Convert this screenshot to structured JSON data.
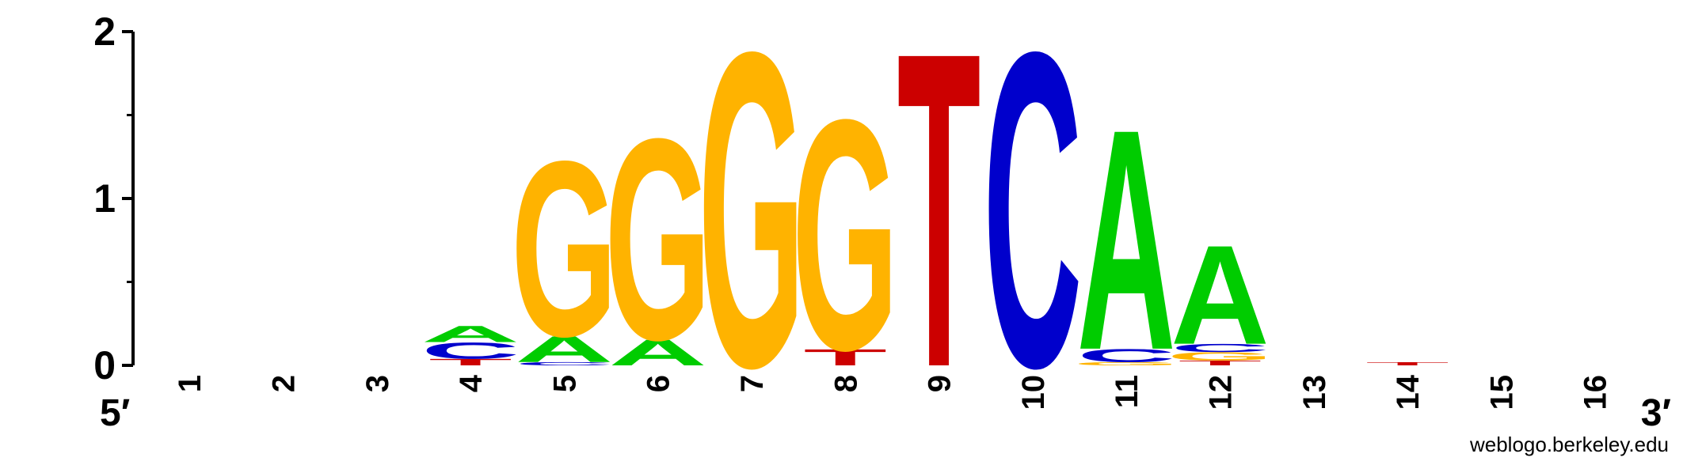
{
  "chart_data": {
    "type": "sequence-logo",
    "ylabel": "",
    "ylim": [
      0,
      2
    ],
    "yticks": [
      "0",
      "1",
      "2"
    ],
    "positions": [
      "1",
      "2",
      "3",
      "4",
      "5",
      "6",
      "7",
      "8",
      "9",
      "10",
      "11",
      "12",
      "13",
      "14",
      "15",
      "16"
    ],
    "end_labels": {
      "left": "5′",
      "right": "3′"
    },
    "colors": {
      "A": "#00cc00",
      "C": "#0000cc",
      "G": "#ffb300",
      "T": "#cc0000"
    },
    "stacks": [
      [],
      [],
      [],
      [
        {
          "base": "T",
          "height": 0.04
        },
        {
          "base": "C",
          "height": 0.1
        },
        {
          "base": "A",
          "height": 0.1
        }
      ],
      [
        {
          "base": "C",
          "height": 0.02
        },
        {
          "base": "A",
          "height": 0.16
        },
        {
          "base": "G",
          "height": 1.08
        }
      ],
      [
        {
          "base": "A",
          "height": 0.16
        },
        {
          "base": "G",
          "height": 1.24
        }
      ],
      [
        {
          "base": "G",
          "height": 1.94
        }
      ],
      [
        {
          "base": "T",
          "height": 0.1
        },
        {
          "base": "G",
          "height": 1.42
        }
      ],
      [
        {
          "base": "T",
          "height": 1.94
        }
      ],
      [
        {
          "base": "C",
          "height": 1.94
        }
      ],
      [
        {
          "base": "G",
          "height": 0.02
        },
        {
          "base": "C",
          "height": 0.08
        },
        {
          "base": "A",
          "height": 1.36
        }
      ],
      [
        {
          "base": "T",
          "height": 0.03
        },
        {
          "base": "G",
          "height": 0.05
        },
        {
          "base": "C",
          "height": 0.05
        },
        {
          "base": "A",
          "height": 0.61
        }
      ],
      [],
      [
        {
          "base": "T",
          "height": 0.02
        }
      ],
      [],
      []
    ]
  },
  "credit": "weblogo.berkeley.edu"
}
